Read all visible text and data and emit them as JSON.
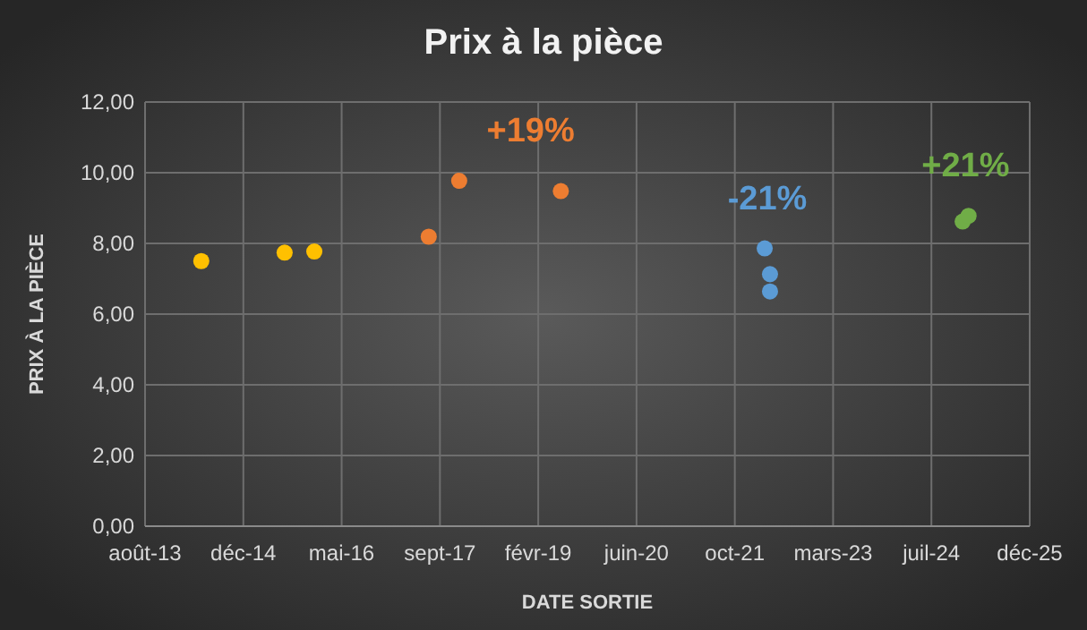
{
  "chart_data": {
    "type": "scatter",
    "title": "Prix à la pièce",
    "xlabel": "DATE SORTIE",
    "ylabel": "PRIX À LA PIÈCE",
    "xlim": [
      "2013-08-13",
      "2025-12-08"
    ],
    "xticks": [
      {
        "value": "2013-08-13",
        "label": "août-13"
      },
      {
        "value": "2014-12-26",
        "label": "déc-14"
      },
      {
        "value": "2016-05-09",
        "label": "mai-16"
      },
      {
        "value": "2017-09-21",
        "label": "sept-17"
      },
      {
        "value": "2019-02-03",
        "label": "févr-19"
      },
      {
        "value": "2020-06-17",
        "label": "juin-20"
      },
      {
        "value": "2021-10-30",
        "label": "oct-21"
      },
      {
        "value": "2023-03-14",
        "label": "mars-23"
      },
      {
        "value": "2024-07-26",
        "label": "juil-24"
      },
      {
        "value": "2025-12-08",
        "label": "déc-25"
      }
    ],
    "ylim": [
      0,
      12
    ],
    "yticks": [
      {
        "value": 0,
        "label": "0,00"
      },
      {
        "value": 2,
        "label": "2,00"
      },
      {
        "value": 4,
        "label": "4,00"
      },
      {
        "value": 6,
        "label": "6,00"
      },
      {
        "value": 8,
        "label": "8,00"
      },
      {
        "value": 10,
        "label": "10,00"
      },
      {
        "value": 12,
        "label": "12,00"
      }
    ],
    "grid": true,
    "marker": "circle",
    "series": [
      {
        "color": "#ffc000",
        "x": [
          "2014-05-26",
          "2015-07-24",
          "2015-12-22"
        ],
        "values": [
          7.5,
          7.74,
          7.77
        ]
      },
      {
        "color": "#ed7d31",
        "x": [
          "2017-07-26",
          "2017-12-28",
          "2019-05-29"
        ],
        "values": [
          8.19,
          9.77,
          9.48
        ]
      },
      {
        "color": "#5b9bd5",
        "x": [
          "2022-03-31",
          "2022-04-27",
          "2022-04-27"
        ],
        "values": [
          7.86,
          7.13,
          6.64
        ]
      },
      {
        "color": "#70ad47",
        "x": [
          "2025-01-01",
          "2025-01-31"
        ],
        "values": [
          8.62,
          8.78
        ]
      }
    ],
    "annotations": [
      "+19%",
      "-21%",
      "+21%"
    ]
  }
}
